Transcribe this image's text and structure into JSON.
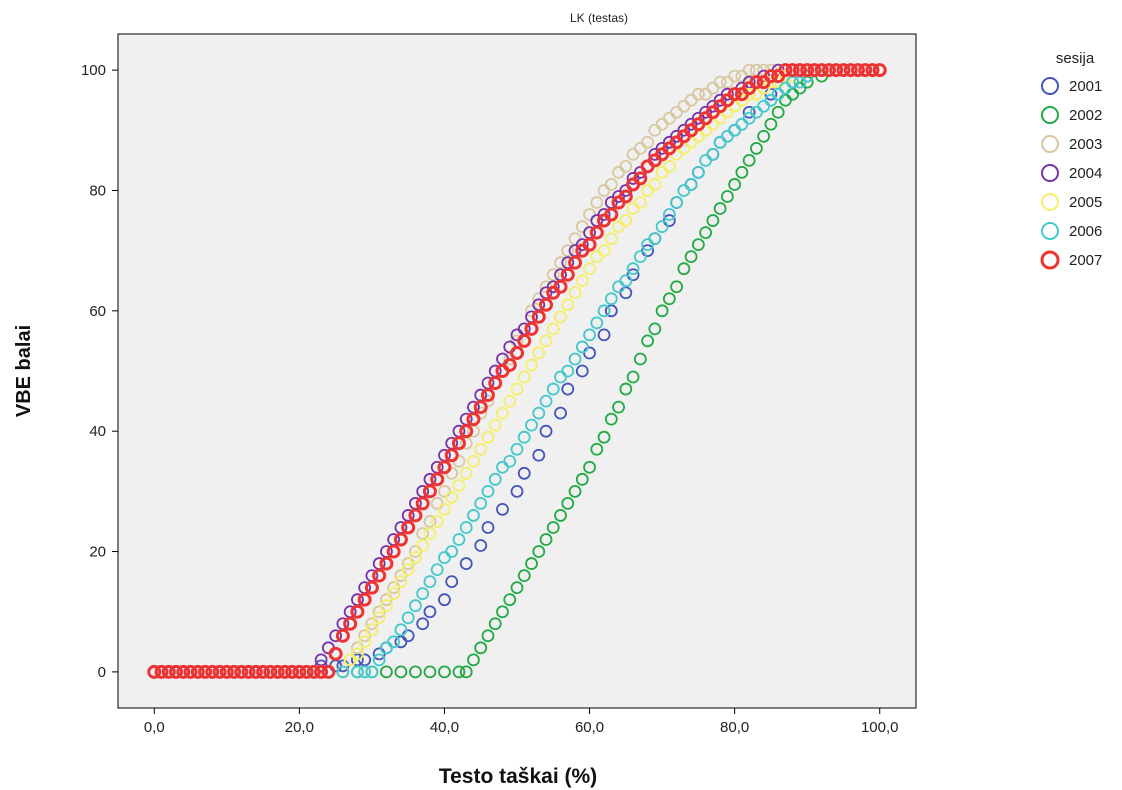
{
  "chart_data": {
    "type": "scatter",
    "title": "LK (testas)",
    "xlabel": "Testo taškai (%)",
    "ylabel": "VBE balai",
    "xlim": [
      -5,
      105
    ],
    "ylim": [
      -6,
      106
    ],
    "xticks": [
      0,
      20,
      40,
      60,
      80,
      100
    ],
    "xtick_labels": [
      "0,0",
      "20,0",
      "40,0",
      "60,0",
      "80,0",
      "100,0"
    ],
    "yticks": [
      0,
      20,
      40,
      60,
      80,
      100
    ],
    "ytick_labels": [
      "0",
      "20",
      "40",
      "60",
      "80",
      "100"
    ],
    "grid": false,
    "legend_title": "sesija",
    "legend_position": "right",
    "series": [
      {
        "name": "2001",
        "color": "#4455bb",
        "x": [
          0,
          2,
          4,
          6,
          8,
          10,
          12,
          14,
          16,
          18,
          20,
          22,
          23,
          25,
          26,
          28,
          29,
          31,
          32,
          34,
          35,
          37,
          38,
          40,
          41,
          43,
          45,
          46,
          48,
          50,
          51,
          53,
          54,
          56,
          57,
          59,
          60,
          62,
          63,
          65,
          66,
          68,
          69,
          71,
          72,
          74,
          75,
          77,
          78,
          80,
          82,
          85,
          88,
          90,
          92,
          94,
          96,
          98,
          100
        ],
        "y": [
          0,
          0,
          0,
          0,
          0,
          0,
          0,
          0,
          0,
          0,
          0,
          0,
          1,
          1,
          1,
          2,
          2,
          3,
          4,
          5,
          6,
          8,
          10,
          12,
          15,
          18,
          21,
          24,
          27,
          30,
          33,
          36,
          40,
          43,
          47,
          50,
          53,
          56,
          60,
          63,
          66,
          70,
          72,
          75,
          78,
          81,
          83,
          86,
          88,
          90,
          93,
          96,
          98,
          99,
          100,
          100,
          100,
          100,
          100
        ]
      },
      {
        "name": "2002",
        "color": "#22aa44",
        "x": [
          0,
          2,
          4,
          6,
          8,
          10,
          12,
          14,
          16,
          18,
          20,
          22,
          24,
          26,
          28,
          30,
          32,
          34,
          36,
          38,
          40,
          42,
          43,
          44,
          45,
          46,
          47,
          48,
          49,
          50,
          51,
          52,
          53,
          54,
          55,
          56,
          57,
          58,
          59,
          60,
          61,
          62,
          63,
          64,
          65,
          66,
          67,
          68,
          69,
          70,
          71,
          72,
          73,
          74,
          75,
          76,
          77,
          78,
          79,
          80,
          81,
          82,
          83,
          84,
          85,
          86,
          87,
          88,
          89,
          90,
          92,
          94,
          96,
          98,
          100
        ],
        "y": [
          0,
          0,
          0,
          0,
          0,
          0,
          0,
          0,
          0,
          0,
          0,
          0,
          0,
          0,
          0,
          0,
          0,
          0,
          0,
          0,
          0,
          0,
          0,
          2,
          4,
          6,
          8,
          10,
          12,
          14,
          16,
          18,
          20,
          22,
          24,
          26,
          28,
          30,
          32,
          34,
          37,
          39,
          42,
          44,
          47,
          49,
          52,
          55,
          57,
          60,
          62,
          64,
          67,
          69,
          71,
          73,
          75,
          77,
          79,
          81,
          83,
          85,
          87,
          89,
          91,
          93,
          95,
          96,
          97,
          98,
          99,
          100,
          100,
          100,
          100
        ]
      },
      {
        "name": "2003",
        "color": "#d8c8a0",
        "x": [
          0,
          2,
          4,
          6,
          8,
          10,
          12,
          14,
          16,
          18,
          20,
          22,
          24,
          26,
          27,
          28,
          29,
          30,
          31,
          32,
          33,
          34,
          35,
          36,
          37,
          38,
          39,
          40,
          41,
          42,
          43,
          44,
          45,
          46,
          47,
          48,
          49,
          50,
          51,
          52,
          53,
          54,
          55,
          56,
          57,
          58,
          59,
          60,
          61,
          62,
          63,
          64,
          65,
          66,
          67,
          68,
          69,
          70,
          71,
          72,
          73,
          74,
          75,
          76,
          77,
          78,
          79,
          80,
          81,
          82,
          83,
          84,
          85,
          86,
          88,
          90,
          92,
          94,
          96,
          98,
          100
        ],
        "y": [
          0,
          0,
          0,
          0,
          0,
          0,
          0,
          0,
          0,
          0,
          0,
          0,
          0,
          0,
          2,
          4,
          6,
          8,
          10,
          12,
          14,
          16,
          18,
          20,
          23,
          25,
          28,
          30,
          33,
          35,
          38,
          40,
          43,
          45,
          48,
          50,
          52,
          55,
          57,
          60,
          62,
          64,
          66,
          68,
          70,
          72,
          74,
          76,
          78,
          80,
          81,
          83,
          84,
          86,
          87,
          88,
          90,
          91,
          92,
          93,
          94,
          95,
          96,
          96,
          97,
          98,
          98,
          99,
          99,
          100,
          100,
          100,
          100,
          100,
          100,
          100,
          100,
          100,
          100,
          100,
          100
        ]
      },
      {
        "name": "2004",
        "color": "#7733aa",
        "x": [
          0,
          2,
          4,
          6,
          8,
          10,
          12,
          14,
          16,
          18,
          20,
          22,
          23,
          24,
          25,
          26,
          27,
          28,
          29,
          30,
          31,
          32,
          33,
          34,
          35,
          36,
          37,
          38,
          39,
          40,
          41,
          42,
          43,
          44,
          45,
          46,
          47,
          48,
          49,
          50,
          51,
          52,
          53,
          54,
          55,
          56,
          57,
          58,
          59,
          60,
          61,
          62,
          63,
          64,
          65,
          66,
          67,
          68,
          69,
          70,
          71,
          72,
          73,
          74,
          75,
          76,
          77,
          78,
          79,
          80,
          81,
          82,
          83,
          84,
          85,
          86,
          87,
          88,
          90,
          92,
          94,
          96,
          98,
          100
        ],
        "y": [
          0,
          0,
          0,
          0,
          0,
          0,
          0,
          0,
          0,
          0,
          0,
          0,
          2,
          4,
          6,
          8,
          10,
          12,
          14,
          16,
          18,
          20,
          22,
          24,
          26,
          28,
          30,
          32,
          34,
          36,
          38,
          40,
          42,
          44,
          46,
          48,
          50,
          52,
          54,
          56,
          57,
          59,
          61,
          63,
          64,
          66,
          68,
          70,
          71,
          73,
          75,
          76,
          78,
          79,
          80,
          82,
          83,
          84,
          86,
          87,
          88,
          89,
          90,
          91,
          92,
          93,
          94,
          95,
          96,
          96,
          97,
          98,
          98,
          99,
          99,
          100,
          100,
          100,
          100,
          100,
          100,
          100,
          100,
          100
        ]
      },
      {
        "name": "2005",
        "color": "#f5ee66",
        "x": [
          0,
          2,
          4,
          6,
          8,
          10,
          12,
          14,
          16,
          18,
          20,
          22,
          24,
          26,
          27,
          28,
          29,
          30,
          31,
          32,
          33,
          34,
          35,
          36,
          37,
          38,
          39,
          40,
          41,
          42,
          43,
          44,
          45,
          46,
          47,
          48,
          49,
          50,
          51,
          52,
          53,
          54,
          55,
          56,
          57,
          58,
          59,
          60,
          61,
          62,
          63,
          64,
          65,
          66,
          67,
          68,
          69,
          70,
          71,
          72,
          73,
          74,
          75,
          76,
          77,
          78,
          79,
          80,
          81,
          82,
          83,
          84,
          85,
          86,
          87,
          88,
          90,
          92,
          94,
          96,
          98,
          100
        ],
        "y": [
          0,
          0,
          0,
          0,
          0,
          0,
          0,
          0,
          0,
          0,
          0,
          0,
          0,
          0,
          2,
          3,
          5,
          7,
          9,
          11,
          13,
          15,
          17,
          19,
          21,
          23,
          25,
          27,
          29,
          31,
          33,
          35,
          37,
          39,
          41,
          43,
          45,
          47,
          49,
          51,
          53,
          55,
          57,
          59,
          61,
          63,
          65,
          67,
          69,
          70,
          72,
          74,
          75,
          77,
          78,
          80,
          81,
          83,
          84,
          86,
          87,
          88,
          89,
          90,
          91,
          92,
          93,
          94,
          95,
          96,
          96,
          97,
          98,
          98,
          99,
          99,
          100,
          100,
          100,
          100,
          100,
          100
        ]
      },
      {
        "name": "2006",
        "color": "#44c8cc",
        "x": [
          0,
          2,
          4,
          6,
          8,
          10,
          12,
          14,
          16,
          18,
          20,
          22,
          24,
          26,
          28,
          29,
          30,
          31,
          32,
          33,
          34,
          35,
          36,
          37,
          38,
          39,
          40,
          41,
          42,
          43,
          44,
          45,
          46,
          47,
          48,
          49,
          50,
          51,
          52,
          53,
          54,
          55,
          56,
          57,
          58,
          59,
          60,
          61,
          62,
          63,
          64,
          65,
          66,
          67,
          68,
          69,
          70,
          71,
          72,
          73,
          74,
          75,
          76,
          77,
          78,
          79,
          80,
          81,
          82,
          83,
          84,
          85,
          86,
          87,
          88,
          89,
          90,
          92,
          94,
          96,
          98,
          100
        ],
        "y": [
          0,
          0,
          0,
          0,
          0,
          0,
          0,
          0,
          0,
          0,
          0,
          0,
          0,
          0,
          0,
          0,
          0,
          2,
          4,
          5,
          7,
          9,
          11,
          13,
          15,
          17,
          19,
          20,
          22,
          24,
          26,
          28,
          30,
          32,
          34,
          35,
          37,
          39,
          41,
          43,
          45,
          47,
          49,
          50,
          52,
          54,
          56,
          58,
          60,
          62,
          64,
          65,
          67,
          69,
          71,
          72,
          74,
          76,
          78,
          80,
          81,
          83,
          85,
          86,
          88,
          89,
          90,
          91,
          92,
          93,
          94,
          95,
          96,
          97,
          98,
          98,
          99,
          100,
          100,
          100,
          100,
          100
        ]
      },
      {
        "name": "2007",
        "color": "#ee3333",
        "x": [
          0,
          1,
          2,
          3,
          4,
          5,
          6,
          7,
          8,
          9,
          10,
          11,
          12,
          13,
          14,
          15,
          16,
          17,
          18,
          19,
          20,
          21,
          22,
          23,
          24,
          25,
          26,
          27,
          28,
          29,
          30,
          31,
          32,
          33,
          34,
          35,
          36,
          37,
          38,
          39,
          40,
          41,
          42,
          43,
          44,
          45,
          46,
          47,
          48,
          49,
          50,
          51,
          52,
          53,
          54,
          55,
          56,
          57,
          58,
          59,
          60,
          61,
          62,
          63,
          64,
          65,
          66,
          67,
          68,
          69,
          70,
          71,
          72,
          73,
          74,
          75,
          76,
          77,
          78,
          79,
          80,
          81,
          82,
          83,
          84,
          85,
          86,
          87,
          88,
          89,
          90,
          91,
          92,
          93,
          94,
          95,
          96,
          97,
          98,
          99,
          100
        ],
        "y": [
          0,
          0,
          0,
          0,
          0,
          0,
          0,
          0,
          0,
          0,
          0,
          0,
          0,
          0,
          0,
          0,
          0,
          0,
          0,
          0,
          0,
          0,
          0,
          0,
          0,
          3,
          6,
          8,
          10,
          12,
          14,
          16,
          18,
          20,
          22,
          24,
          26,
          28,
          30,
          32,
          34,
          36,
          38,
          40,
          42,
          44,
          46,
          48,
          50,
          51,
          53,
          55,
          57,
          59,
          61,
          63,
          64,
          66,
          68,
          70,
          71,
          73,
          75,
          76,
          78,
          79,
          81,
          82,
          84,
          85,
          86,
          87,
          88,
          89,
          90,
          91,
          92,
          93,
          94,
          95,
          96,
          96,
          97,
          98,
          98,
          99,
          99,
          100,
          100,
          100,
          100,
          100,
          100,
          100,
          100,
          100,
          100,
          100,
          100,
          100,
          100
        ]
      }
    ]
  }
}
